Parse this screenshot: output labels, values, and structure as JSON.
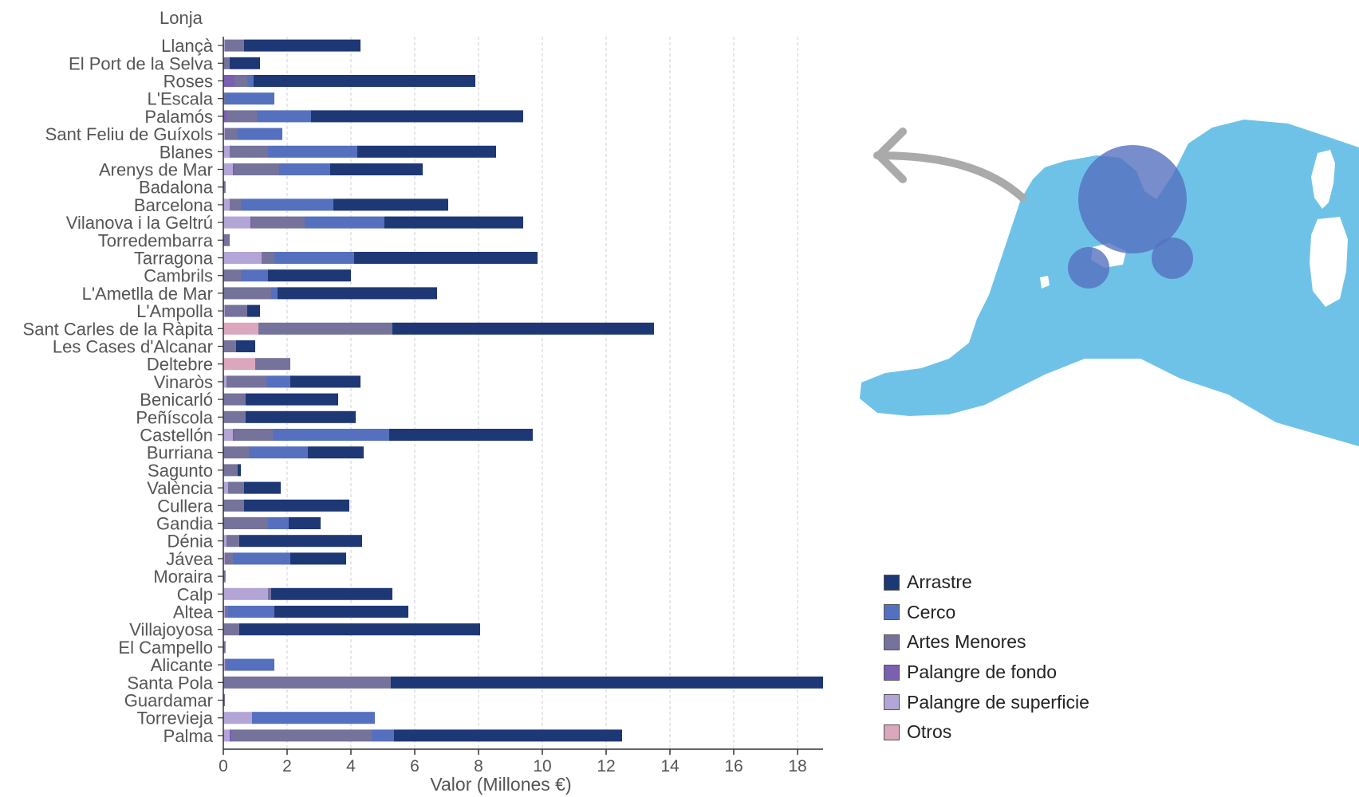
{
  "chart_data": {
    "type": "bar",
    "orientation": "horizontal",
    "stacked": true,
    "title": "Lonja",
    "xlabel": "Valor (Millones €)",
    "xlim": [
      0,
      18.8
    ],
    "xticks": [
      "0",
      "2",
      "4",
      "6",
      "8",
      "10",
      "12",
      "14",
      "16",
      "18"
    ],
    "grid": "vertical dashed",
    "legend_position": "right",
    "categories": [
      "Llançà",
      "El Port de la Selva",
      "Roses",
      "L'Escala",
      "Palamós",
      "Sant Feliu de Guíxols",
      "Blanes",
      "Arenys de Mar",
      "Badalona",
      "Barcelona",
      "Vilanova i la Geltrú",
      "Torredembarra",
      "Tarragona",
      "Cambrils",
      "L'Ametlla de Mar",
      "L'Ampolla",
      "Sant Carles de la Ràpita",
      "Les Cases d'Alcanar",
      "Deltebre",
      "Vinaròs",
      "Benicarló",
      "Peñíscola",
      "Castellón",
      "Burriana",
      "Sagunto",
      "València",
      "Cullera",
      "Gandia",
      "Dénia",
      "Jávea",
      "Moraira",
      "Calp",
      "Altea",
      "Villajoyosa",
      "El Campello",
      "Alicante",
      "Santa Pola",
      "Guardamar",
      "Torrevieja",
      "Palma"
    ],
    "series": [
      {
        "name": "Otros",
        "color": "#dba7bd",
        "values": [
          0,
          0,
          0,
          0,
          0,
          0,
          0,
          0,
          0,
          0,
          0,
          0,
          0,
          0,
          0,
          0,
          1.1,
          0,
          1.0,
          0,
          0,
          0,
          0,
          0,
          0,
          0,
          0,
          0,
          0,
          0,
          0,
          0,
          0,
          0,
          0,
          0,
          0,
          0,
          0,
          0
        ]
      },
      {
        "name": "Palangre de superficie",
        "color": "#b3a5d6",
        "values": [
          0.05,
          0,
          0,
          0,
          0,
          0.05,
          0.2,
          0.3,
          0,
          0.2,
          0.85,
          0,
          1.2,
          0,
          0,
          0.05,
          0,
          0,
          0,
          0.1,
          0,
          0,
          0.3,
          0,
          0,
          0.15,
          0,
          0,
          0.1,
          0.05,
          0,
          1.4,
          0.05,
          0,
          0,
          0.05,
          0,
          0,
          0.9,
          0.2
        ]
      },
      {
        "name": "Palangre de fondo",
        "color": "#7b5fb0",
        "values": [
          0,
          0,
          0.35,
          0,
          0.1,
          0,
          0,
          0.05,
          0,
          0,
          0.05,
          0,
          0,
          0,
          0,
          0,
          0,
          0,
          0,
          0,
          0,
          0,
          0.05,
          0,
          0,
          0,
          0,
          0,
          0,
          0,
          0,
          0,
          0,
          0,
          0,
          0,
          0,
          0,
          0,
          0.05
        ]
      },
      {
        "name": "Artes Menores",
        "color": "#75739b",
        "values": [
          0.6,
          0.2,
          0.4,
          0.05,
          0.95,
          0.4,
          1.2,
          1.4,
          0.07,
          0.35,
          1.65,
          0.2,
          0.4,
          0.55,
          1.5,
          0.7,
          4.2,
          0.4,
          1.1,
          1.25,
          0.7,
          0.7,
          1.2,
          0.8,
          0.45,
          0.5,
          0.65,
          1.4,
          0.4,
          0.25,
          0.07,
          0.1,
          0.1,
          0.5,
          0.07,
          0.05,
          5.25,
          0.05,
          0,
          4.4
        ]
      },
      {
        "name": "Cerco",
        "color": "#5570bf",
        "values": [
          0,
          0,
          0.2,
          1.55,
          1.7,
          1.4,
          2.8,
          1.6,
          0,
          2.9,
          2.5,
          0,
          2.5,
          0.85,
          0.2,
          0,
          0,
          0,
          0,
          0.75,
          0,
          0,
          3.65,
          1.85,
          0,
          0,
          0,
          0.65,
          0,
          1.8,
          0,
          0,
          1.45,
          0,
          0,
          1.5,
          0,
          0,
          3.85,
          0.7
        ]
      },
      {
        "name": "Arrastre",
        "color": "#1e3775",
        "values": [
          3.65,
          0.95,
          6.95,
          0,
          6.65,
          0,
          4.35,
          2.9,
          0,
          3.6,
          4.35,
          0,
          5.75,
          2.6,
          5.0,
          0.4,
          8.2,
          0.6,
          0,
          2.2,
          2.9,
          3.45,
          4.5,
          1.75,
          0.1,
          1.15,
          3.3,
          1.0,
          3.85,
          1.75,
          0,
          3.8,
          4.2,
          7.55,
          0,
          0,
          13.55,
          0,
          0,
          7.15
        ]
      }
    ]
  }
}
